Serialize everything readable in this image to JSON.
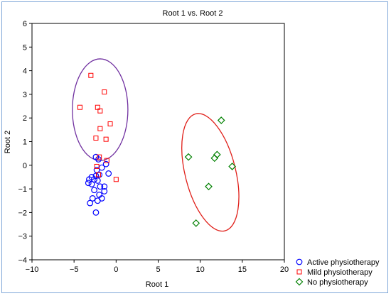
{
  "chart_data": {
    "type": "scatter",
    "title": "Root 1 vs. Root 2",
    "xlabel": "Root 1",
    "ylabel": "Root 2",
    "xlim": [
      -10,
      20
    ],
    "ylim": [
      -4,
      6
    ],
    "xticks": [
      "-10",
      "-5",
      "0",
      "5",
      "10",
      "15",
      "20"
    ],
    "yticks": [
      "-4",
      "-3",
      "-2",
      "-1",
      "0",
      "1",
      "2",
      "3",
      "4",
      "5",
      "6"
    ],
    "legend_position": "bottom-right",
    "series": [
      {
        "name": "Active physiotherapy",
        "marker": "circle",
        "color": "#0000ff",
        "points": [
          [
            -2.4,
            0.35
          ],
          [
            -2.1,
            0.25
          ],
          [
            -1.2,
            0.05
          ],
          [
            -1.7,
            -0.1
          ],
          [
            -2.3,
            -0.2
          ],
          [
            -0.9,
            -0.35
          ],
          [
            -2.0,
            -0.4
          ],
          [
            -2.4,
            -0.45
          ],
          [
            -2.9,
            -0.5
          ],
          [
            -2.6,
            -0.6
          ],
          [
            -3.2,
            -0.6
          ],
          [
            -2.2,
            -0.65
          ],
          [
            -3.3,
            -0.75
          ],
          [
            -2.9,
            -0.8
          ],
          [
            -1.9,
            -0.9
          ],
          [
            -1.4,
            -0.9
          ],
          [
            -2.6,
            -1.05
          ],
          [
            -1.4,
            -1.1
          ],
          [
            -2.0,
            -1.25
          ],
          [
            -2.8,
            -1.4
          ],
          [
            -1.7,
            -1.4
          ],
          [
            -2.2,
            -1.5
          ],
          [
            -3.1,
            -1.6
          ],
          [
            -2.4,
            -2.0
          ]
        ]
      },
      {
        "name": "Mild physiotherapy",
        "marker": "square",
        "color": "#ff0000",
        "points": [
          [
            -3.0,
            3.8
          ],
          [
            -1.4,
            3.1
          ],
          [
            -4.3,
            2.45
          ],
          [
            -2.2,
            2.45
          ],
          [
            -1.9,
            2.3
          ],
          [
            -0.7,
            1.75
          ],
          [
            -1.9,
            1.55
          ],
          [
            -2.4,
            1.15
          ],
          [
            -1.2,
            1.1
          ],
          [
            -2.0,
            0.35
          ],
          [
            -1.1,
            0.2
          ],
          [
            -2.3,
            -0.05
          ],
          [
            -2.1,
            -0.4
          ],
          [
            0.0,
            -0.6
          ]
        ]
      },
      {
        "name": "No physiotherapy",
        "marker": "diamond",
        "color": "#008000",
        "points": [
          [
            12.5,
            1.9
          ],
          [
            12.0,
            0.45
          ],
          [
            8.6,
            0.35
          ],
          [
            11.7,
            0.3
          ],
          [
            13.8,
            -0.05
          ],
          [
            11.0,
            -0.9
          ],
          [
            9.5,
            -2.45
          ]
        ]
      }
    ],
    "ellipses": [
      {
        "center": [
          -1.9,
          2.35
        ],
        "rx": 3.3,
        "ry": 2.15,
        "rotation_deg": 0,
        "color": "#7030a0"
      },
      {
        "center": [
          11.2,
          -0.3
        ],
        "rx": 3.0,
        "ry": 2.55,
        "rotation_deg": -14,
        "color": "#e0201a"
      }
    ]
  }
}
